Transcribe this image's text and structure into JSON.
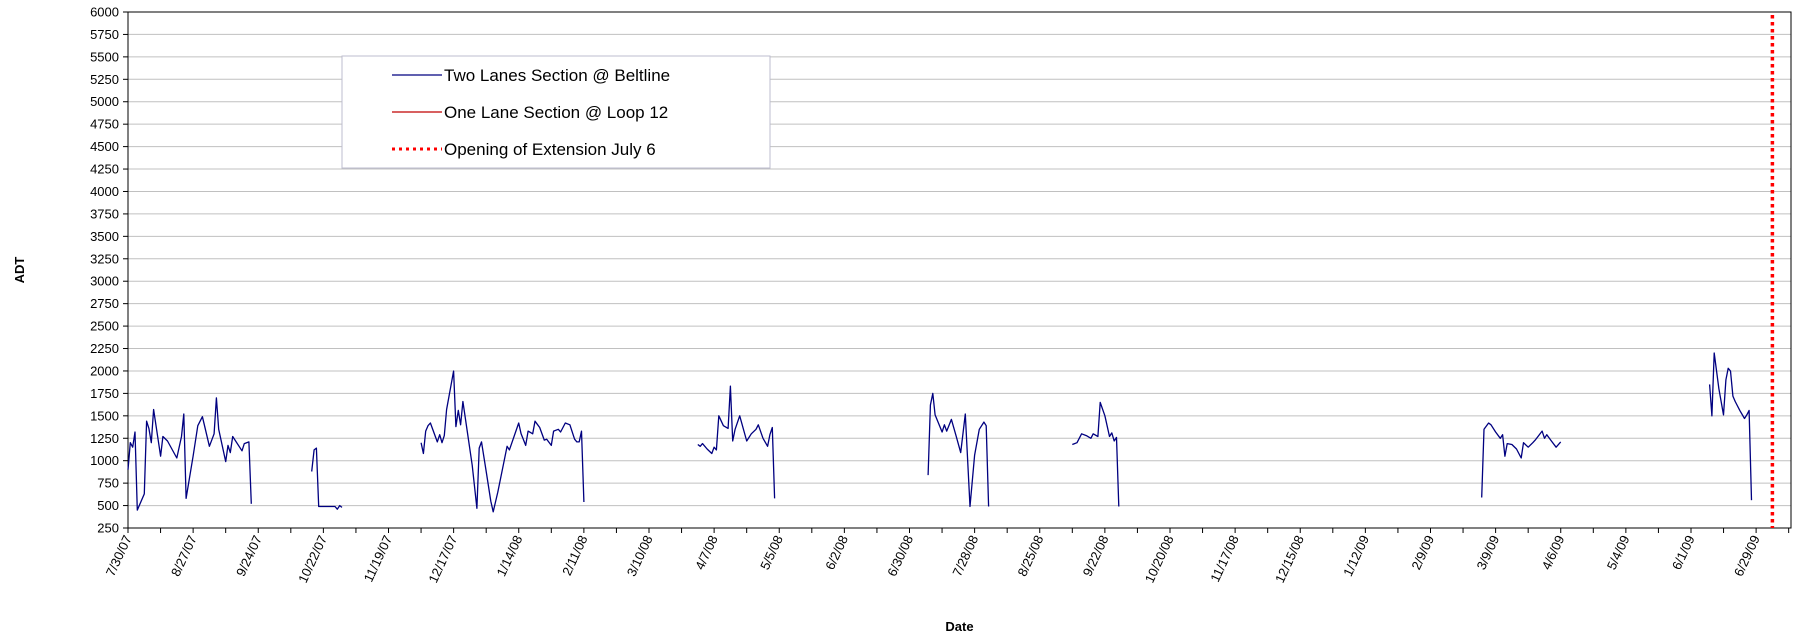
{
  "chart_data": {
    "type": "line",
    "title": "",
    "xlabel": "Date",
    "ylabel": "ADT",
    "ylim": [
      250,
      6000
    ],
    "yticks": [
      250,
      500,
      750,
      1000,
      1250,
      1500,
      1750,
      2000,
      2250,
      2500,
      2750,
      3000,
      3250,
      3500,
      3750,
      4000,
      4250,
      4500,
      4750,
      5000,
      5250,
      5500,
      5750,
      6000
    ],
    "xlim": [
      "2007-07-30",
      "2009-07-14"
    ],
    "xtick_labels": [
      "7/30/07",
      "8/27/07",
      "9/24/07",
      "10/22/07",
      "11/19/07",
      "12/17/07",
      "1/14/08",
      "2/11/08",
      "3/10/08",
      "4/7/08",
      "5/5/08",
      "6/2/08",
      "6/30/08",
      "7/28/08",
      "8/25/08",
      "9/22/08",
      "10/20/08",
      "11/17/08",
      "12/15/08",
      "1/12/09",
      "2/9/09",
      "3/9/09",
      "4/6/09",
      "5/4/09",
      "6/1/09",
      "6/29/09"
    ],
    "grid": "horizontal",
    "legend_position": "top-left",
    "colors": {
      "two_lanes": "#000080",
      "one_lane": "#c00000",
      "opening": "#ff0000",
      "grid": "#c0c0c0"
    },
    "series": [
      {
        "name": "Two Lanes Section @ Beltline",
        "type": "line",
        "segments": [
          [
            [
              "2007-07-30",
              900
            ],
            [
              "2007-07-31",
              1200
            ],
            [
              "2007-08-01",
              1150
            ],
            [
              "2007-08-02",
              1320
            ],
            [
              "2007-08-03",
              450
            ],
            [
              "2007-08-06",
              630
            ],
            [
              "2007-08-07",
              1440
            ],
            [
              "2007-08-08",
              1360
            ],
            [
              "2007-08-09",
              1200
            ],
            [
              "2007-08-10",
              1570
            ],
            [
              "2007-08-13",
              1050
            ],
            [
              "2007-08-14",
              1270
            ],
            [
              "2007-08-16",
              1220
            ],
            [
              "2007-08-20",
              1030
            ],
            [
              "2007-08-22",
              1270
            ],
            [
              "2007-08-23",
              1520
            ],
            [
              "2007-08-24",
              580
            ],
            [
              "2007-08-27",
              1050
            ],
            [
              "2007-08-29",
              1390
            ],
            [
              "2007-08-31",
              1490
            ],
            [
              "2007-09-03",
              1160
            ],
            [
              "2007-09-05",
              1300
            ],
            [
              "2007-09-06",
              1700
            ],
            [
              "2007-09-07",
              1350
            ],
            [
              "2007-09-10",
              990
            ],
            [
              "2007-09-11",
              1170
            ],
            [
              "2007-09-12",
              1090
            ],
            [
              "2007-09-13",
              1270
            ],
            [
              "2007-09-17",
              1110
            ],
            [
              "2007-09-18",
              1190
            ],
            [
              "2007-09-20",
              1210
            ],
            [
              "2007-09-21",
              520
            ]
          ],
          [
            [
              "2007-10-17",
              880
            ],
            [
              "2007-10-18",
              1120
            ],
            [
              "2007-10-19",
              1140
            ],
            [
              "2007-10-20",
              490
            ],
            [
              "2007-10-27",
              490
            ],
            [
              "2007-10-28",
              460
            ],
            [
              "2007-10-29",
              500
            ],
            [
              "2007-10-30",
              480
            ]
          ],
          [
            [
              "2007-12-03",
              1200
            ],
            [
              "2007-12-04",
              1080
            ],
            [
              "2007-12-05",
              1330
            ],
            [
              "2007-12-06",
              1390
            ],
            [
              "2007-12-07",
              1420
            ],
            [
              "2007-12-10",
              1210
            ],
            [
              "2007-12-11",
              1290
            ],
            [
              "2007-12-12",
              1200
            ],
            [
              "2007-12-13",
              1280
            ],
            [
              "2007-12-14",
              1570
            ],
            [
              "2007-12-17",
              2000
            ],
            [
              "2007-12-18",
              1380
            ],
            [
              "2007-12-19",
              1560
            ],
            [
              "2007-12-20",
              1400
            ],
            [
              "2007-12-21",
              1660
            ],
            [
              "2007-12-25",
              950
            ],
            [
              "2007-12-27",
              470
            ],
            [
              "2007-12-28",
              1140
            ],
            [
              "2007-12-29",
              1210
            ],
            [
              "2007-12-31",
              880
            ],
            [
              "2008-01-02",
              550
            ],
            [
              "2008-01-03",
              430
            ],
            [
              "2008-01-05",
              650
            ],
            [
              "2008-01-09",
              1160
            ],
            [
              "2008-01-10",
              1120
            ],
            [
              "2008-01-14",
              1420
            ],
            [
              "2008-01-15",
              1300
            ],
            [
              "2008-01-17",
              1170
            ],
            [
              "2008-01-18",
              1330
            ],
            [
              "2008-01-20",
              1300
            ],
            [
              "2008-01-21",
              1440
            ],
            [
              "2008-01-23",
              1370
            ],
            [
              "2008-01-25",
              1230
            ],
            [
              "2008-01-26",
              1240
            ],
            [
              "2008-01-28",
              1170
            ],
            [
              "2008-01-29",
              1330
            ],
            [
              "2008-01-31",
              1350
            ],
            [
              "2008-02-01",
              1320
            ],
            [
              "2008-02-03",
              1420
            ],
            [
              "2008-02-05",
              1400
            ],
            [
              "2008-02-07",
              1240
            ],
            [
              "2008-02-08",
              1210
            ],
            [
              "2008-02-09",
              1210
            ],
            [
              "2008-02-10",
              1330
            ],
            [
              "2008-02-11",
              540
            ]
          ],
          [
            [
              "2008-03-31",
              1180
            ],
            [
              "2008-04-01",
              1160
            ],
            [
              "2008-04-02",
              1190
            ],
            [
              "2008-04-04",
              1130
            ],
            [
              "2008-04-06",
              1080
            ],
            [
              "2008-04-07",
              1150
            ],
            [
              "2008-04-08",
              1120
            ],
            [
              "2008-04-09",
              1500
            ],
            [
              "2008-04-11",
              1390
            ],
            [
              "2008-04-13",
              1360
            ],
            [
              "2008-04-14",
              1830
            ],
            [
              "2008-04-15",
              1220
            ],
            [
              "2008-04-16",
              1350
            ],
            [
              "2008-04-18",
              1500
            ],
            [
              "2008-04-21",
              1220
            ],
            [
              "2008-04-23",
              1300
            ],
            [
              "2008-04-25",
              1350
            ],
            [
              "2008-04-26",
              1400
            ],
            [
              "2008-04-28",
              1250
            ],
            [
              "2008-04-30",
              1160
            ],
            [
              "2008-05-01",
              1290
            ],
            [
              "2008-05-02",
              1370
            ],
            [
              "2008-05-03",
              580
            ]
          ],
          [
            [
              "2008-07-08",
              840
            ],
            [
              "2008-07-09",
              1620
            ],
            [
              "2008-07-10",
              1750
            ],
            [
              "2008-07-11",
              1510
            ],
            [
              "2008-07-14",
              1320
            ],
            [
              "2008-07-15",
              1400
            ],
            [
              "2008-07-16",
              1330
            ],
            [
              "2008-07-18",
              1460
            ],
            [
              "2008-07-20",
              1280
            ],
            [
              "2008-07-22",
              1090
            ],
            [
              "2008-07-24",
              1520
            ],
            [
              "2008-07-26",
              490
            ],
            [
              "2008-07-28",
              1060
            ],
            [
              "2008-07-30",
              1350
            ],
            [
              "2008-08-01",
              1430
            ],
            [
              "2008-08-02",
              1390
            ],
            [
              "2008-08-03",
              490
            ]
          ],
          [
            [
              "2008-09-08",
              1180
            ],
            [
              "2008-09-09",
              1190
            ],
            [
              "2008-09-10",
              1200
            ],
            [
              "2008-09-12",
              1300
            ],
            [
              "2008-09-14",
              1280
            ],
            [
              "2008-09-16",
              1250
            ],
            [
              "2008-09-17",
              1300
            ],
            [
              "2008-09-19",
              1270
            ],
            [
              "2008-09-20",
              1650
            ],
            [
              "2008-09-22",
              1500
            ],
            [
              "2008-09-24",
              1270
            ],
            [
              "2008-09-25",
              1310
            ],
            [
              "2008-09-26",
              1220
            ],
            [
              "2008-09-27",
              1260
            ],
            [
              "2008-09-28",
              490
            ]
          ],
          [
            [
              "2009-03-03",
              590
            ],
            [
              "2009-03-04",
              1350
            ],
            [
              "2009-03-06",
              1420
            ],
            [
              "2009-03-07",
              1400
            ],
            [
              "2009-03-09",
              1320
            ],
            [
              "2009-03-11",
              1250
            ],
            [
              "2009-03-12",
              1290
            ],
            [
              "2009-03-13",
              1050
            ],
            [
              "2009-03-14",
              1190
            ],
            [
              "2009-03-16",
              1180
            ],
            [
              "2009-03-18",
              1130
            ],
            [
              "2009-03-20",
              1030
            ],
            [
              "2009-03-21",
              1200
            ],
            [
              "2009-03-23",
              1150
            ],
            [
              "2009-03-25",
              1200
            ],
            [
              "2009-03-26",
              1230
            ],
            [
              "2009-03-29",
              1330
            ],
            [
              "2009-03-30",
              1250
            ],
            [
              "2009-03-31",
              1290
            ],
            [
              "2009-04-02",
              1220
            ],
            [
              "2009-04-04",
              1150
            ],
            [
              "2009-04-06",
              1210
            ]
          ],
          [
            [
              "2009-06-09",
              1850
            ],
            [
              "2009-06-10",
              1500
            ],
            [
              "2009-06-11",
              2200
            ],
            [
              "2009-06-13",
              1800
            ],
            [
              "2009-06-15",
              1510
            ],
            [
              "2009-06-16",
              1900
            ],
            [
              "2009-06-17",
              2030
            ],
            [
              "2009-06-18",
              2000
            ],
            [
              "2009-06-19",
              1720
            ],
            [
              "2009-06-20",
              1660
            ],
            [
              "2009-06-22",
              1560
            ],
            [
              "2009-06-24",
              1470
            ],
            [
              "2009-06-25",
              1510
            ],
            [
              "2009-06-26",
              1560
            ],
            [
              "2009-06-27",
              560
            ]
          ]
        ]
      },
      {
        "name": "One Lane Section @ Loop 12",
        "type": "line",
        "segments": []
      },
      {
        "name": "Opening of Extension July 6",
        "type": "vline",
        "x": "2009-07-06"
      }
    ]
  }
}
